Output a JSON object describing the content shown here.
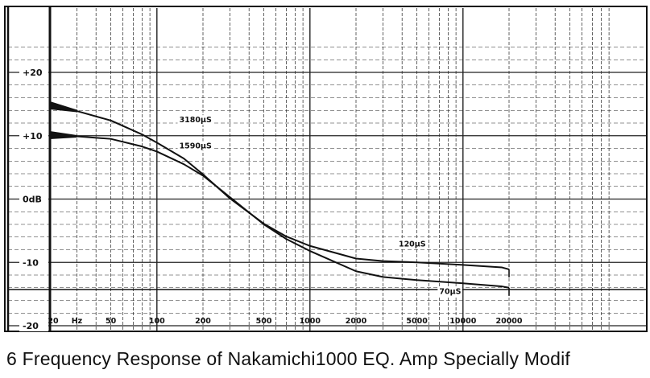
{
  "caption": "6 Frequency Response of Nakamichi1000 EQ. Amp Specially Modif",
  "chart_data": {
    "type": "line",
    "title": "",
    "xlabel": "Hz",
    "ylabel": "dB",
    "x_scale": "log",
    "xlim": [
      20,
      20000
    ],
    "ylim": [
      -20,
      20
    ],
    "grid": true,
    "x_ticks": [
      {
        "value": 20,
        "label": "20"
      },
      {
        "value": 50,
        "label": "50"
      },
      {
        "value": 100,
        "label": "100"
      },
      {
        "value": 200,
        "label": "200"
      },
      {
        "value": 500,
        "label": "500"
      },
      {
        "value": 1000,
        "label": "1000"
      },
      {
        "value": 2000,
        "label": "2000"
      },
      {
        "value": 5000,
        "label": "5000"
      },
      {
        "value": 10000,
        "label": "10000"
      },
      {
        "value": 20000,
        "label": "20000"
      }
    ],
    "x_unit_label": "Hz",
    "y_ticks": [
      {
        "value": 20,
        "label": "+20"
      },
      {
        "value": 10,
        "label": "+10"
      },
      {
        "value": 0,
        "label": "0dB"
      },
      {
        "value": -10,
        "label": "-10"
      },
      {
        "value": -20,
        "label": "-20"
      }
    ],
    "series": [
      {
        "name": "3180µS",
        "color": "#111111",
        "points": [
          [
            20,
            14.8
          ],
          [
            30,
            13.9
          ],
          [
            50,
            12.4
          ],
          [
            80,
            10.2
          ],
          [
            100,
            8.9
          ],
          [
            150,
            6.4
          ],
          [
            200,
            3.9
          ],
          [
            300,
            0.1
          ],
          [
            500,
            -3.9
          ],
          [
            700,
            -5.9
          ],
          [
            1000,
            -7.4
          ],
          [
            2000,
            -9.4
          ],
          [
            3000,
            -9.8
          ],
          [
            5000,
            -10.0
          ],
          [
            10000,
            -10.4
          ],
          [
            18000,
            -10.8
          ],
          [
            20000,
            -11.1
          ]
        ]
      },
      {
        "name": "1590µS",
        "color": "#111111",
        "points": [
          [
            20,
            10.1
          ],
          [
            30,
            9.9
          ],
          [
            50,
            9.5
          ],
          [
            80,
            8.3
          ],
          [
            100,
            7.5
          ],
          [
            150,
            5.5
          ],
          [
            200,
            3.7
          ],
          [
            300,
            0.3
          ],
          [
            500,
            -4.0
          ],
          [
            700,
            -6.3
          ],
          [
            1000,
            -8.2
          ],
          [
            2000,
            -11.4
          ],
          [
            3000,
            -12.3
          ],
          [
            5000,
            -12.8
          ],
          [
            10000,
            -13.3
          ],
          [
            18000,
            -13.8
          ],
          [
            20000,
            -14.0
          ]
        ]
      }
    ],
    "annotations": [
      {
        "text": "3180µS",
        "x": 140,
        "y": 12.1
      },
      {
        "text": "1590µS",
        "x": 140,
        "y": 8.0
      },
      {
        "text": "120µS",
        "x": 3800,
        "y": -7.5
      },
      {
        "text": "70µS",
        "x": 7000,
        "y": -15.0
      }
    ]
  }
}
